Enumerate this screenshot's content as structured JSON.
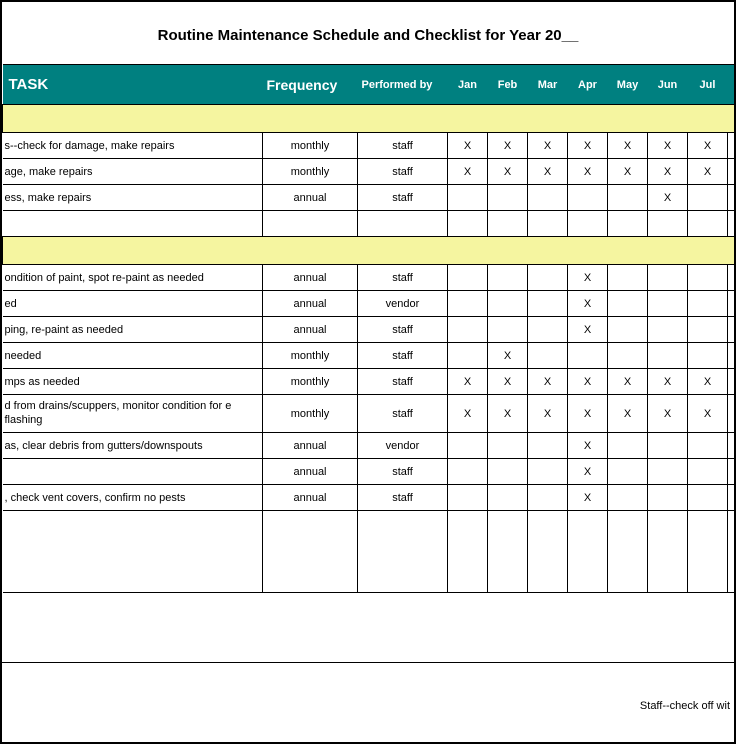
{
  "title": "Routine Maintenance Schedule and Checklist for Year 20__",
  "headers": {
    "task": "TASK",
    "frequency": "Frequency",
    "performed_by": "Performed by",
    "months": [
      "Jan",
      "Feb",
      "Mar",
      "Apr",
      "May",
      "Jun",
      "Jul"
    ]
  },
  "rows": [
    {
      "type": "section"
    },
    {
      "type": "data",
      "task": "s--check for damage, make repairs",
      "freq": "monthly",
      "perf": "staff",
      "marks": [
        "X",
        "X",
        "X",
        "X",
        "X",
        "X",
        "X"
      ]
    },
    {
      "type": "data",
      "task": "age, make repairs",
      "freq": "monthly",
      "perf": "staff",
      "marks": [
        "X",
        "X",
        "X",
        "X",
        "X",
        "X",
        "X"
      ]
    },
    {
      "type": "data",
      "task": "ess, make repairs",
      "freq": "annual",
      "perf": "staff",
      "marks": [
        "",
        "",
        "",
        "",
        "",
        "X",
        ""
      ]
    },
    {
      "type": "blank"
    },
    {
      "type": "section"
    },
    {
      "type": "data",
      "task": "ondition of paint, spot re-paint as needed",
      "freq": "annual",
      "perf": "staff",
      "marks": [
        "",
        "",
        "",
        "X",
        "",
        "",
        ""
      ]
    },
    {
      "type": "data",
      "task": "ed",
      "freq": "annual",
      "perf": "vendor",
      "marks": [
        "",
        "",
        "",
        "X",
        "",
        "",
        ""
      ]
    },
    {
      "type": "data",
      "task": "ping, re-paint as needed",
      "freq": "annual",
      "perf": "staff",
      "marks": [
        "",
        "",
        "",
        "X",
        "",
        "",
        ""
      ]
    },
    {
      "type": "data",
      "task": " needed",
      "freq": "monthly",
      "perf": "staff",
      "marks": [
        "",
        "X",
        "",
        "",
        "",
        "",
        ""
      ]
    },
    {
      "type": "data",
      "task": "mps as needed",
      "freq": "monthly",
      "perf": "staff",
      "marks": [
        "X",
        "X",
        "X",
        "X",
        "X",
        "X",
        "X"
      ]
    },
    {
      "type": "data",
      "task": "d from drains/scuppers, monitor condition for e flashing",
      "freq": "monthly",
      "perf": "staff",
      "marks": [
        "X",
        "X",
        "X",
        "X",
        "X",
        "X",
        "X"
      ],
      "wrap": true
    },
    {
      "type": "data",
      "task": "as, clear debris from gutters/downspouts",
      "freq": "annual",
      "perf": "vendor",
      "marks": [
        "",
        "",
        "",
        "X",
        "",
        "",
        ""
      ]
    },
    {
      "type": "data",
      "task": "",
      "freq": "annual",
      "perf": "staff",
      "marks": [
        "",
        "",
        "",
        "X",
        "",
        "",
        ""
      ]
    },
    {
      "type": "data",
      "task": ", check vent covers, confirm no pests",
      "freq": "annual",
      "perf": "staff",
      "marks": [
        "",
        "",
        "",
        "X",
        "",
        "",
        ""
      ]
    },
    {
      "type": "bigblank"
    }
  ],
  "footer_note": "Staff--check off wit",
  "colors": {
    "header_bg": "#008080",
    "section_bg": "#f5f5a0"
  }
}
